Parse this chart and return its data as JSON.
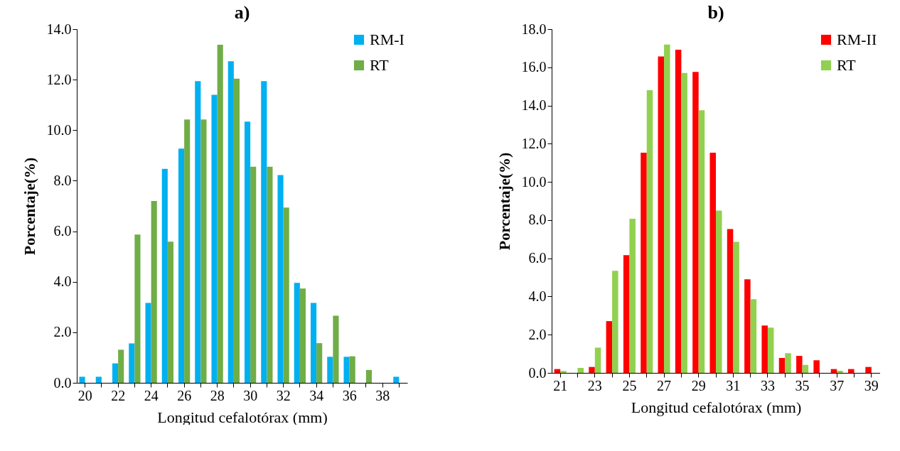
{
  "chart_data": [
    {
      "type": "bar",
      "title": "a)",
      "xlabel": "Longitud cefalotórax (mm)",
      "ylabel": "Porcentaje(%)",
      "categories": [
        "20",
        null,
        "22",
        null,
        "24",
        null,
        "26",
        null,
        "28",
        null,
        "30",
        null,
        "32",
        null,
        "34",
        null,
        "36",
        null,
        "38",
        null
      ],
      "series": [
        {
          "name": "RM-I",
          "color": "#00b0f0",
          "values": [
            0.24,
            0.24,
            0.77,
            1.56,
            3.16,
            8.47,
            9.27,
            11.94,
            11.4,
            12.73,
            10.34,
            11.94,
            8.22,
            3.96,
            3.16,
            1.03,
            1.03,
            0,
            0,
            0.24
          ]
        },
        {
          "name": "RT",
          "color": "#70ad47",
          "values": [
            0,
            0,
            1.31,
            5.87,
            7.2,
            5.59,
            10.42,
            10.42,
            13.38,
            12.04,
            8.55,
            8.55,
            6.94,
            3.73,
            1.57,
            2.66,
            1.05,
            0.51,
            0,
            0
          ]
        }
      ],
      "ylim": [
        0,
        14
      ],
      "yticks": [
        {
          "value": 0,
          "label": "0.0"
        },
        {
          "value": 2,
          "label": "2.0"
        },
        {
          "value": 4,
          "label": "4.0"
        },
        {
          "value": 6,
          "label": "6.0"
        },
        {
          "value": 8,
          "label": "8.0"
        },
        {
          "value": 10,
          "label": "10.0"
        },
        {
          "value": 12,
          "label": "12.0"
        },
        {
          "value": 14,
          "label": "14.0"
        }
      ],
      "grid": false,
      "legend": "top right"
    },
    {
      "type": "bar",
      "title": "b)",
      "xlabel": "Longitud cefalotórax (mm)",
      "ylabel": "Porcentaje(%)",
      "categories": [
        "21",
        null,
        "23",
        null,
        "25",
        null,
        "27",
        null,
        "29",
        null,
        "31",
        null,
        "33",
        null,
        "35",
        null,
        "37",
        null,
        "39"
      ],
      "series": [
        {
          "name": "RM-II",
          "color": "#ff0000",
          "values": [
            0.2,
            0,
            0.31,
            2.71,
            6.16,
            11.53,
            16.57,
            16.92,
            15.76,
            11.53,
            7.53,
            4.9,
            2.48,
            0.78,
            0.89,
            0.66,
            0.2,
            0.2,
            0.31
          ]
        },
        {
          "name": "RT",
          "color": "#92d050",
          "values": [
            0.1,
            0.26,
            1.32,
            5.35,
            8.07,
            14.8,
            17.19,
            15.7,
            13.75,
            8.5,
            6.86,
            3.86,
            2.37,
            1.03,
            0.42,
            0,
            0.11,
            0,
            0
          ]
        }
      ],
      "ylim": [
        0,
        18
      ],
      "yticks": [
        {
          "value": 0,
          "label": "0.0"
        },
        {
          "value": 2,
          "label": "2.0"
        },
        {
          "value": 4,
          "label": "4.0"
        },
        {
          "value": 6,
          "label": "6.0"
        },
        {
          "value": 8,
          "label": "8.0"
        },
        {
          "value": 10,
          "label": "10.0"
        },
        {
          "value": 12,
          "label": "12.0"
        },
        {
          "value": 14,
          "label": "14.0"
        },
        {
          "value": 16,
          "label": "16.0"
        },
        {
          "value": 18,
          "label": "18.0"
        }
      ],
      "grid": false,
      "legend": "top right"
    }
  ]
}
